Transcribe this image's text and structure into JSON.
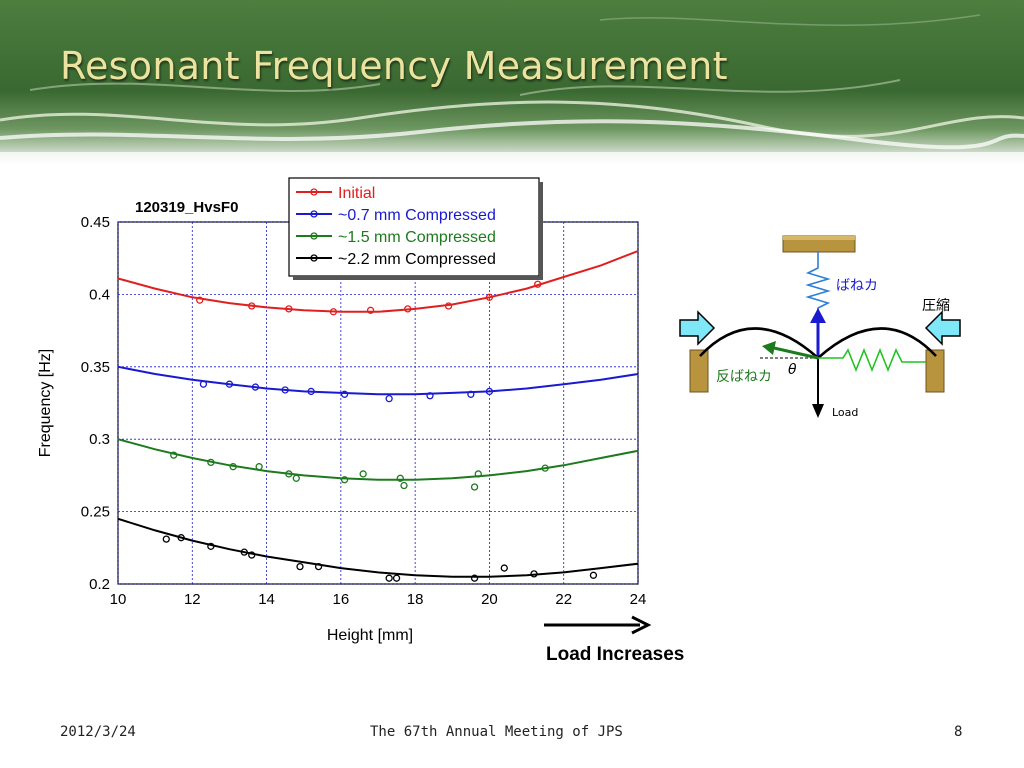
{
  "slide": {
    "title": "Resonant Frequency Measurement",
    "footer": {
      "date": "2012/3/24",
      "center": "The 67th Annual Meeting of JPS",
      "page": "8"
    }
  },
  "colors": {
    "title": "#ece3a0",
    "header_green": "#3e6b35",
    "initial": "#e02020",
    "c07": "#1a1ad0",
    "c15": "#1e7a1e",
    "c22": "#000000"
  },
  "chart_data": {
    "type": "scatter",
    "title": "120319_HvsF0",
    "xlabel": "Height [mm]",
    "ylabel": "Frequency [Hz]",
    "xlim": [
      10,
      24
    ],
    "ylim": [
      0.2,
      0.45
    ],
    "xticks": [
      "10",
      "12",
      "14",
      "16",
      "18",
      "20",
      "22",
      "24"
    ],
    "yticks": [
      "0.2",
      "0.25",
      "0.3",
      "0.35",
      "0.4",
      "0.45"
    ],
    "grid": true,
    "legend_position": "top-right",
    "series": [
      {
        "name": "Initial",
        "color": "#e02020",
        "points": [
          [
            12.2,
            0.396
          ],
          [
            13.6,
            0.392
          ],
          [
            14.6,
            0.39
          ],
          [
            15.8,
            0.388
          ],
          [
            16.8,
            0.389
          ],
          [
            17.8,
            0.39
          ],
          [
            18.9,
            0.392
          ],
          [
            20,
            0.398
          ],
          [
            21.3,
            0.407
          ]
        ],
        "fit": [
          [
            10,
            0.411
          ],
          [
            11,
            0.404
          ],
          [
            12,
            0.398
          ],
          [
            13,
            0.394
          ],
          [
            14,
            0.391
          ],
          [
            15,
            0.389
          ],
          [
            16,
            0.388
          ],
          [
            17,
            0.388
          ],
          [
            18,
            0.39
          ],
          [
            19,
            0.393
          ],
          [
            20,
            0.398
          ],
          [
            21,
            0.404
          ],
          [
            22,
            0.412
          ],
          [
            23,
            0.42
          ],
          [
            24,
            0.43
          ]
        ]
      },
      {
        "name": "~0.7 mm Compressed",
        "color": "#1a1ad0",
        "points": [
          [
            12.3,
            0.338
          ],
          [
            13,
            0.338
          ],
          [
            13.7,
            0.336
          ],
          [
            14.5,
            0.334
          ],
          [
            15.2,
            0.333
          ],
          [
            16.1,
            0.331
          ],
          [
            17.3,
            0.328
          ],
          [
            18.4,
            0.33
          ],
          [
            19.5,
            0.331
          ],
          [
            20,
            0.333
          ]
        ],
        "fit": [
          [
            10,
            0.35
          ],
          [
            11,
            0.345
          ],
          [
            12,
            0.341
          ],
          [
            13,
            0.338
          ],
          [
            14,
            0.335
          ],
          [
            15,
            0.333
          ],
          [
            16,
            0.332
          ],
          [
            17,
            0.331
          ],
          [
            18,
            0.331
          ],
          [
            19,
            0.332
          ],
          [
            20,
            0.333
          ],
          [
            21,
            0.335
          ],
          [
            22,
            0.338
          ],
          [
            23,
            0.341
          ],
          [
            24,
            0.345
          ]
        ]
      },
      {
        "name": "~1.5 mm Compressed",
        "color": "#1e7a1e",
        "points": [
          [
            11.5,
            0.289
          ],
          [
            12.5,
            0.284
          ],
          [
            13.1,
            0.281
          ],
          [
            13.8,
            0.281
          ],
          [
            14.6,
            0.276
          ],
          [
            14.8,
            0.273
          ],
          [
            16.1,
            0.272
          ],
          [
            16.6,
            0.276
          ],
          [
            17.6,
            0.273
          ],
          [
            17.7,
            0.268
          ],
          [
            19.6,
            0.267
          ],
          [
            19.7,
            0.276
          ],
          [
            21.5,
            0.28
          ]
        ],
        "fit": [
          [
            10,
            0.3
          ],
          [
            11,
            0.293
          ],
          [
            12,
            0.287
          ],
          [
            13,
            0.282
          ],
          [
            14,
            0.278
          ],
          [
            15,
            0.275
          ],
          [
            16,
            0.273
          ],
          [
            17,
            0.272
          ],
          [
            18,
            0.272
          ],
          [
            19,
            0.273
          ],
          [
            20,
            0.275
          ],
          [
            21,
            0.278
          ],
          [
            22,
            0.282
          ],
          [
            23,
            0.287
          ],
          [
            24,
            0.292
          ]
        ]
      },
      {
        "name": "~2.2 mm Compressed",
        "color": "#000000",
        "points": [
          [
            11.3,
            0.231
          ],
          [
            11.7,
            0.232
          ],
          [
            12.5,
            0.226
          ],
          [
            13.4,
            0.222
          ],
          [
            13.6,
            0.22
          ],
          [
            14.9,
            0.212
          ],
          [
            15.4,
            0.212
          ],
          [
            17.3,
            0.204
          ],
          [
            17.5,
            0.204
          ],
          [
            19.6,
            0.204
          ],
          [
            20.4,
            0.211
          ],
          [
            21.2,
            0.207
          ],
          [
            22.8,
            0.206
          ]
        ],
        "fit": [
          [
            10,
            0.245
          ],
          [
            11,
            0.237
          ],
          [
            12,
            0.23
          ],
          [
            13,
            0.224
          ],
          [
            14,
            0.219
          ],
          [
            15,
            0.215
          ],
          [
            16,
            0.211
          ],
          [
            17,
            0.208
          ],
          [
            18,
            0.206
          ],
          [
            19,
            0.205
          ],
          [
            20,
            0.205
          ],
          [
            21,
            0.206
          ],
          [
            22,
            0.208
          ],
          [
            23,
            0.211
          ],
          [
            24,
            0.214
          ]
        ]
      }
    ]
  },
  "annotation": {
    "arrow_label": "Load Increases"
  },
  "diagram": {
    "spring_force": "ばねカ",
    "compress": "圧縮",
    "reaction": "反ばねカ",
    "theta": "θ",
    "load": "Load"
  }
}
